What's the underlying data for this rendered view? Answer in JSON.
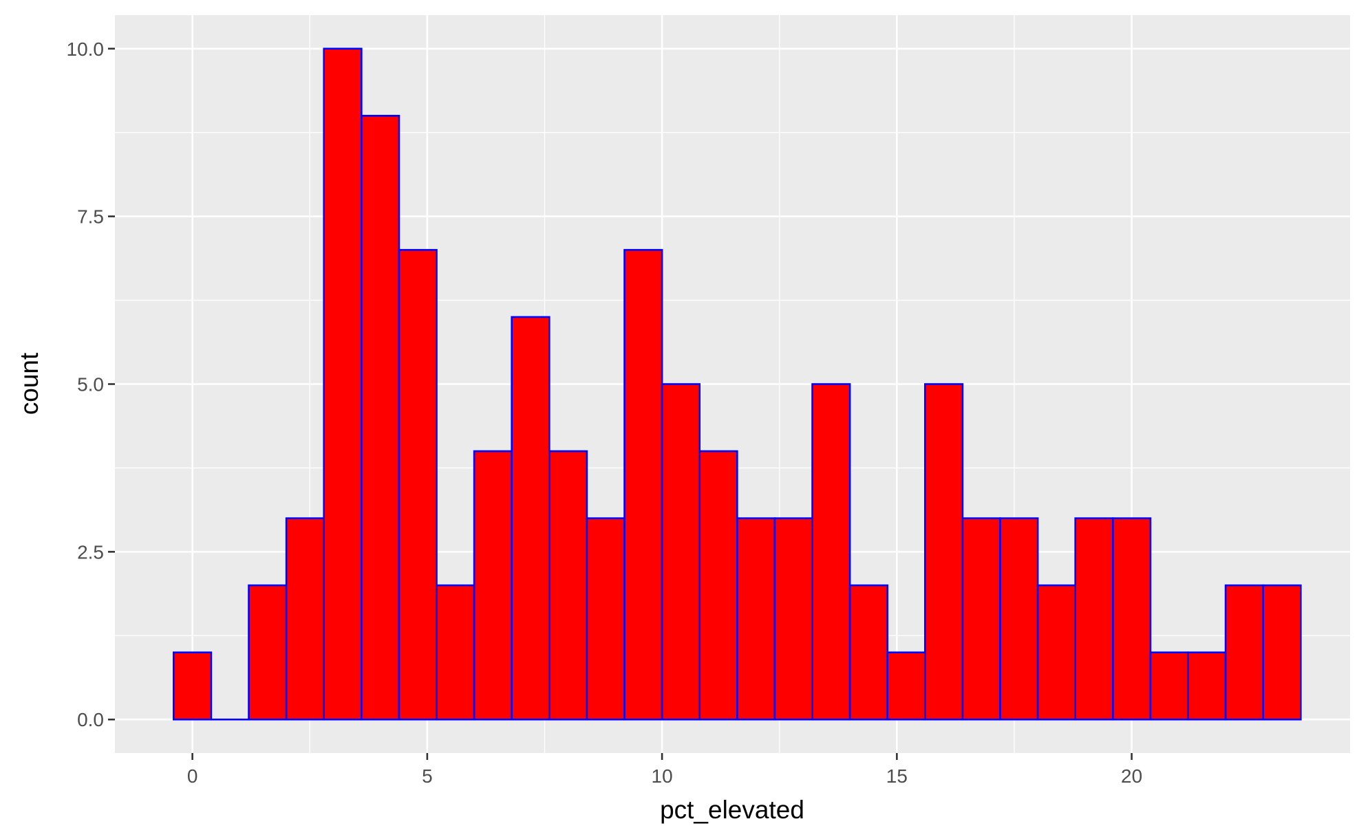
{
  "chart_data": {
    "type": "histogram",
    "xlabel": "pct_elevated",
    "ylabel": "count",
    "xlim": [
      -1.65,
      24.65
    ],
    "ylim": [
      -0.5,
      10.5
    ],
    "x_ticks": [
      0,
      5,
      10,
      15,
      20
    ],
    "x_tick_labels": [
      "0",
      "5",
      "10",
      "15",
      "20"
    ],
    "y_ticks": [
      0,
      2.5,
      5,
      7.5,
      10
    ],
    "y_tick_labels": [
      "0.0",
      "2.5",
      "5.0",
      "7.5",
      "10.0"
    ],
    "grid": true,
    "bin_width": 0.8,
    "bin_centers": [
      0.0,
      0.8,
      1.6,
      2.4,
      3.2,
      4.0,
      4.8,
      5.6,
      6.4,
      7.2,
      8.0,
      8.8,
      9.6,
      10.4,
      11.2,
      12.0,
      12.8,
      13.6,
      14.4,
      15.2,
      16.0,
      16.8,
      17.6,
      18.4,
      19.2,
      20.0,
      20.8,
      21.6,
      22.4,
      23.2
    ],
    "counts": [
      1,
      0,
      2,
      3,
      10,
      9,
      7,
      2,
      4,
      6,
      4,
      3,
      7,
      5,
      4,
      3,
      3,
      5,
      2,
      1,
      5,
      3,
      3,
      2,
      3,
      3,
      1,
      1,
      2,
      2
    ],
    "colors": {
      "bar_fill": "#ff0000",
      "bar_outline": "#0000ff",
      "panel_background": "#ebebeb",
      "grid": "#ffffff"
    }
  }
}
